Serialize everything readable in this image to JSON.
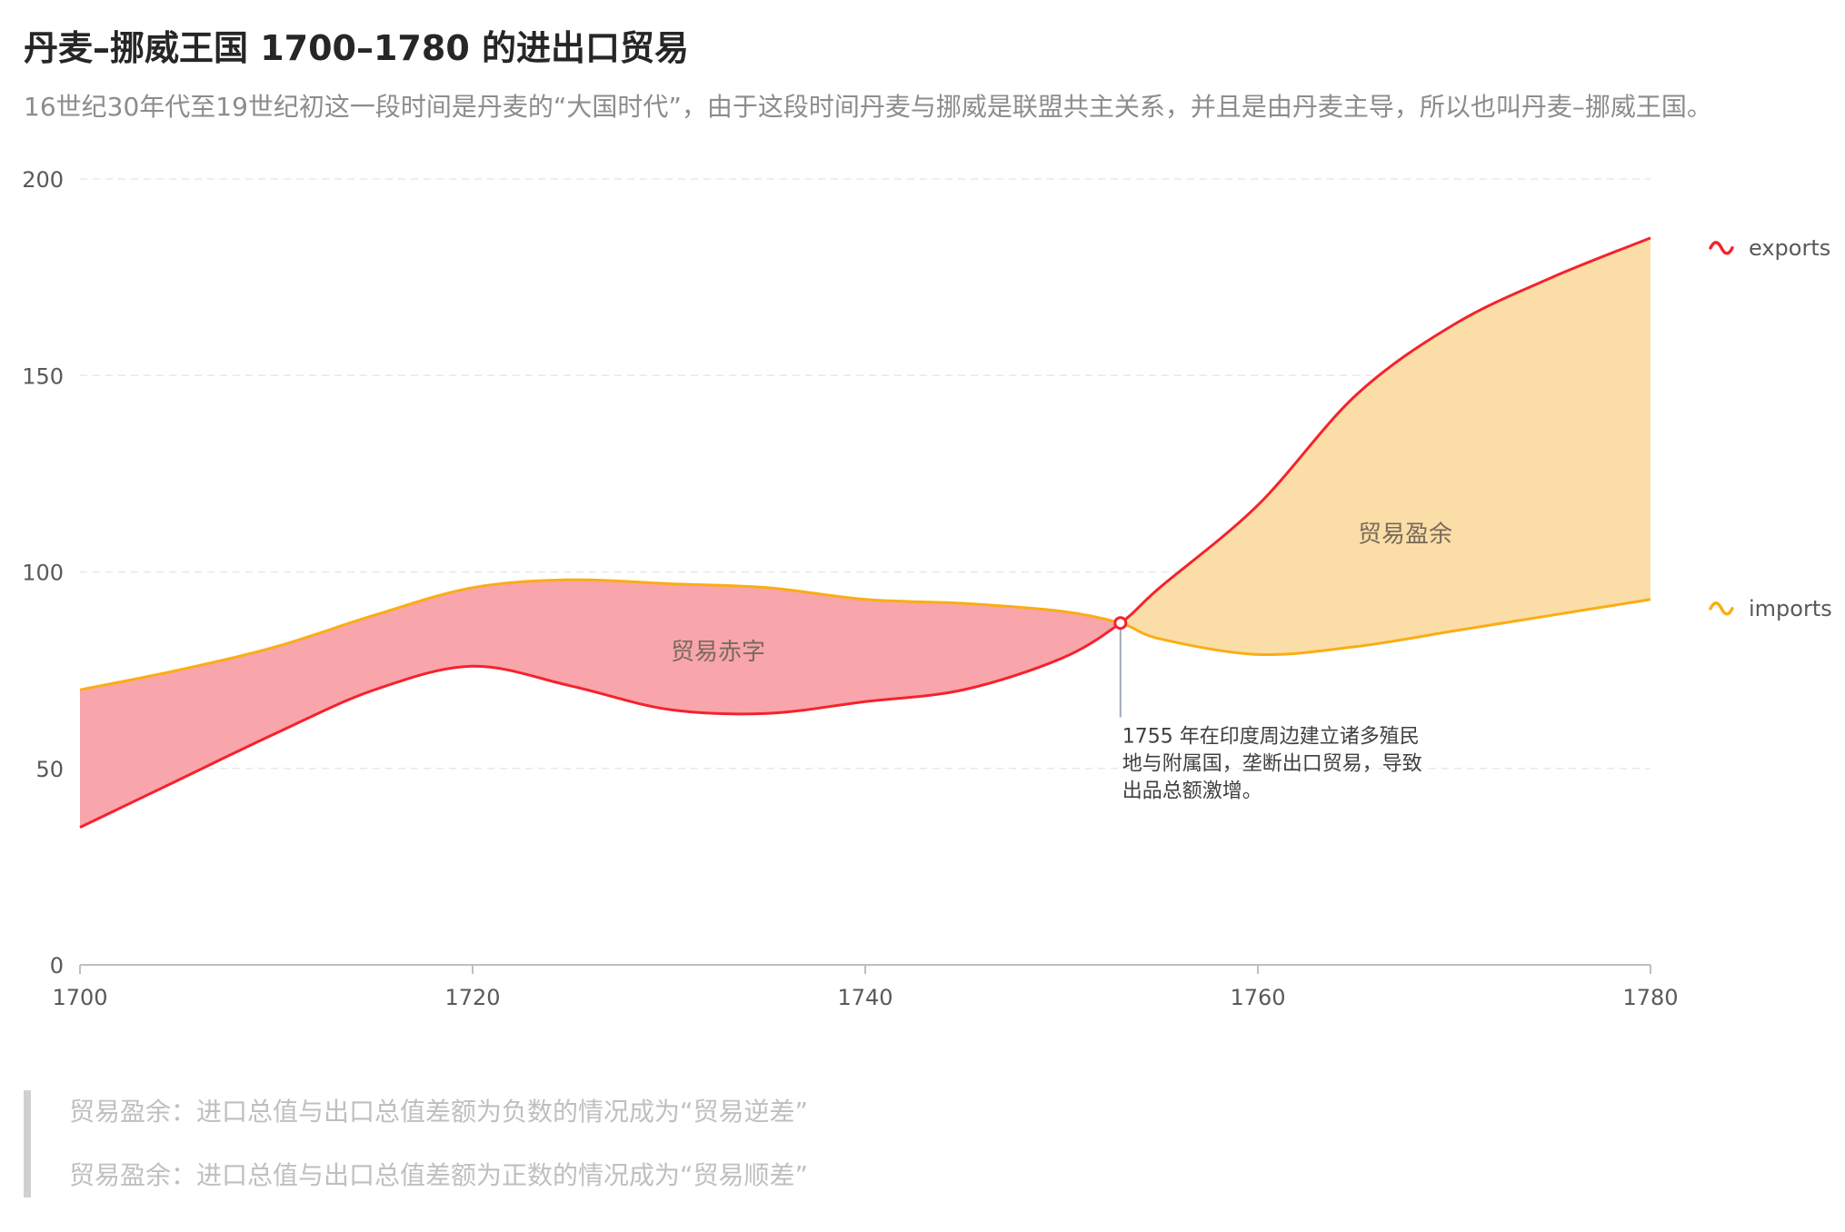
{
  "title": "丹麦–挪威王国 1700–1780 的进出口贸易",
  "subtitle": "16世纪30年代至19世纪初这一段时间是丹麦的“大国时代”，由于这段时间丹麦与挪威是联盟共主关系，并且是由丹麦主导，所以也叫丹麦–挪威王国。",
  "notes": [
    "贸易盈余：进口总值与出口总值差额为负数的情况成为“贸易逆差”",
    "贸易盈余：进口总值与出口总值差额为正数的情况成为“贸易顺差”"
  ],
  "colors": {
    "exports": "#f5222d",
    "imports": "#faad14",
    "deficit_fill": "#f8a5ab",
    "surplus_fill": "#fbdea7",
    "grid": "#e8e8e8",
    "axis_text": "#595959"
  },
  "chart_data": {
    "type": "area",
    "x": [
      1700,
      1705,
      1710,
      1715,
      1720,
      1725,
      1730,
      1735,
      1740,
      1745,
      1750,
      1753,
      1755,
      1760,
      1765,
      1770,
      1775,
      1780
    ],
    "series": [
      {
        "name": "exports",
        "values": [
          35,
          47,
          59,
          70,
          76,
          71,
          65,
          64,
          67,
          70,
          78,
          87,
          96,
          117,
          145,
          163,
          175,
          185
        ]
      },
      {
        "name": "imports",
        "values": [
          70,
          75,
          81,
          89,
          96,
          98,
          97,
          96,
          93,
          92,
          90,
          87,
          83,
          79,
          81,
          85,
          89,
          93
        ]
      }
    ],
    "xticks": [
      1700,
      1720,
      1740,
      1760,
      1780
    ],
    "yticks": [
      0,
      50,
      100,
      150,
      200
    ],
    "xlim": [
      1700,
      1780
    ],
    "ylim": [
      0,
      200
    ],
    "grid": true,
    "legend": "right",
    "region_labels": [
      {
        "text": "贸易赤字",
        "x": 1732.5,
        "y": 80
      },
      {
        "text": "贸易盈余",
        "x": 1767.5,
        "y": 110
      }
    ],
    "annotation": {
      "x": 1753,
      "y": 87,
      "lines": [
        "1755 年在印度周边建立诸多殖民",
        "地与附属国，垄断出口贸易，导致",
        "出品总额激增。"
      ]
    }
  }
}
